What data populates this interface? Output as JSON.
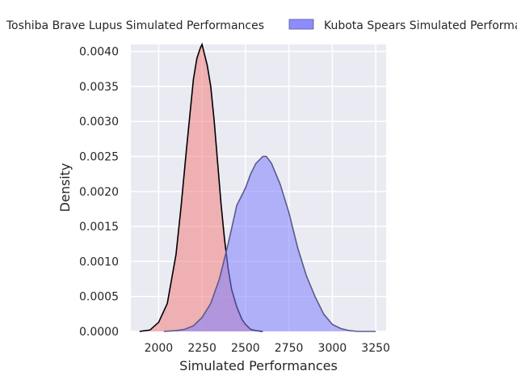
{
  "chart_data": {
    "type": "area",
    "title": "",
    "xlabel": "Simulated Performances",
    "ylabel": "Density",
    "xlim": [
      1840,
      3310
    ],
    "ylim": [
      0,
      0.0041
    ],
    "xticks": [
      2000,
      2250,
      2500,
      2750,
      3000,
      3250
    ],
    "xtick_labels": [
      "2000",
      "2250",
      "2500",
      "2750",
      "3000",
      "3250"
    ],
    "yticks": [
      0,
      0.0005,
      0.001,
      0.0015,
      0.002,
      0.0025,
      0.003,
      0.0035,
      0.004
    ],
    "ytick_labels": [
      "0.0000",
      "0.0005",
      "0.0010",
      "0.0015",
      "0.0020",
      "0.0025",
      "0.0030",
      "0.0035",
      "0.0040"
    ],
    "grid": true,
    "background": "#eaeaf2",
    "legend_position": "top",
    "series": [
      {
        "name": "Toshiba Brave Lupus Simulated Performances",
        "fill": "#f08080",
        "line": "#000000",
        "x": [
          1890,
          1950,
          2000,
          2050,
          2100,
          2130,
          2160,
          2180,
          2200,
          2220,
          2240,
          2250,
          2260,
          2280,
          2300,
          2320,
          2340,
          2360,
          2380,
          2400,
          2420,
          2450,
          2480,
          2500,
          2530,
          2560,
          2600
        ],
        "y": [
          0,
          2e-05,
          0.00013,
          0.0004,
          0.0011,
          0.0018,
          0.0026,
          0.0031,
          0.0036,
          0.0039,
          0.00405,
          0.0041,
          0.004,
          0.0038,
          0.0035,
          0.003,
          0.0024,
          0.0018,
          0.0013,
          0.0009,
          0.0006,
          0.00035,
          0.00017,
          0.0001,
          3e-05,
          1e-05,
          0
        ]
      },
      {
        "name": "Kubota Spears Simulated Performances",
        "fill": "#8080ff",
        "line": "#5a5a8c",
        "x": [
          2030,
          2100,
          2150,
          2200,
          2250,
          2300,
          2350,
          2400,
          2450,
          2500,
          2530,
          2560,
          2600,
          2620,
          2650,
          2700,
          2750,
          2800,
          2850,
          2900,
          2950,
          3000,
          3050,
          3100,
          3150,
          3200,
          3250
        ],
        "y": [
          0,
          1e-05,
          3e-05,
          8e-05,
          0.0002,
          0.0004,
          0.00075,
          0.00125,
          0.0018,
          0.00205,
          0.00225,
          0.0024,
          0.0025,
          0.0025,
          0.0024,
          0.0021,
          0.0017,
          0.0012,
          0.0008,
          0.0005,
          0.00025,
          0.0001,
          4e-05,
          1e-05,
          0,
          0,
          0
        ]
      }
    ]
  }
}
